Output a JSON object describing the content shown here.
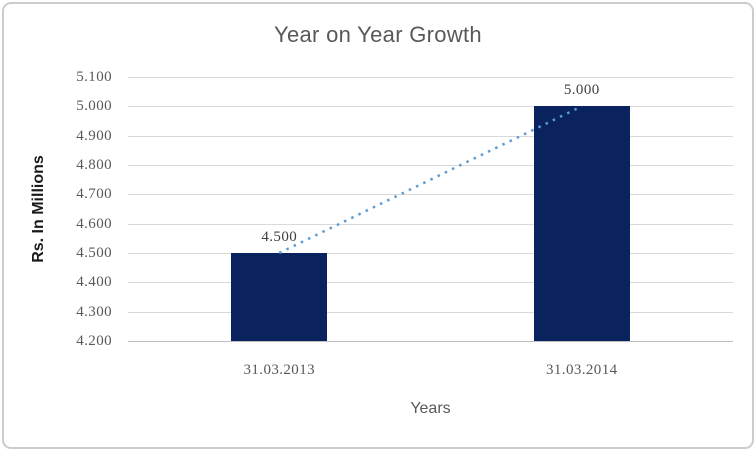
{
  "chart_data": {
    "type": "bar",
    "title": "Year on Year Growth",
    "xlabel": "Years",
    "ylabel": "Rs. In Millions",
    "categories": [
      "31.03.2013",
      "31.03.2014"
    ],
    "values": [
      4.5,
      5.0
    ],
    "data_labels": [
      "4.500",
      "5.000"
    ],
    "yticks": [
      "5.100",
      "5.000",
      "4.900",
      "4.800",
      "4.700",
      "4.600",
      "4.500",
      "4.400",
      "4.300",
      "4.200"
    ],
    "ylim": [
      4.2,
      5.1
    ],
    "ytick_step": 0.1,
    "grid": true,
    "legend": false,
    "bar_color": "#0a235f",
    "trendline": {
      "style": "dotted",
      "color": "#5b9bd5",
      "from_value": 4.5,
      "to_value": 5.0
    },
    "gridline_color": "#d9d9d9",
    "axis_line_color": "#bfbfbf"
  }
}
